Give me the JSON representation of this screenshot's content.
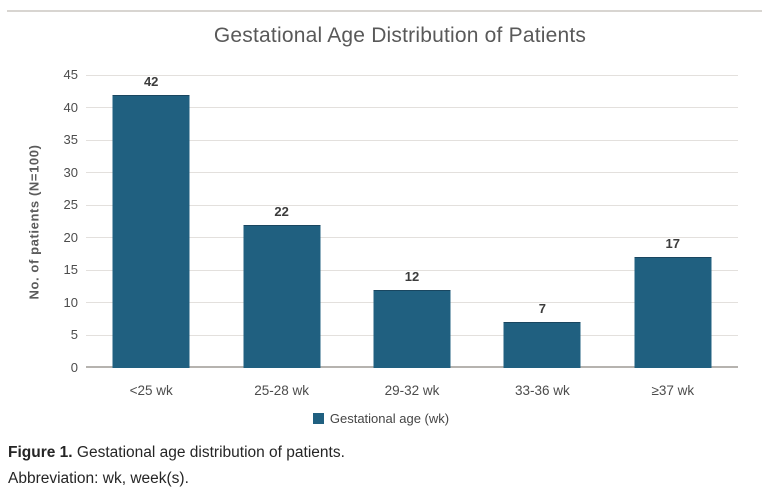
{
  "chart_data": {
    "type": "bar",
    "title": "Gestational Age Distribution of Patients",
    "categories": [
      "<25 wk",
      "25-28 wk",
      "29-32 wk",
      "33-36 wk",
      "≥37 wk"
    ],
    "values": [
      42,
      22,
      12,
      7,
      17
    ],
    "xlabel": "",
    "ylabel": "No. of patients (N=100)",
    "ylim": [
      0,
      45
    ],
    "ytick_step": 5,
    "grid": "horizontal",
    "legend": {
      "label": "Gestational age (wk)",
      "position": "bottom-center"
    }
  },
  "caption": {
    "figure_label": "Figure 1.",
    "figure_text": " Gestational age distribution of patients.",
    "abbreviation": "Abbreviation: wk, week(s)."
  },
  "colors": {
    "bar": "#206080",
    "title": "#595959",
    "tick_label": "#4c4c4c",
    "data_label": "#3c3c3c",
    "gridline": "#e3e0dd",
    "baseline": "#b6b3af",
    "top_rule": "#d8d5d1",
    "caption": "#252525"
  }
}
